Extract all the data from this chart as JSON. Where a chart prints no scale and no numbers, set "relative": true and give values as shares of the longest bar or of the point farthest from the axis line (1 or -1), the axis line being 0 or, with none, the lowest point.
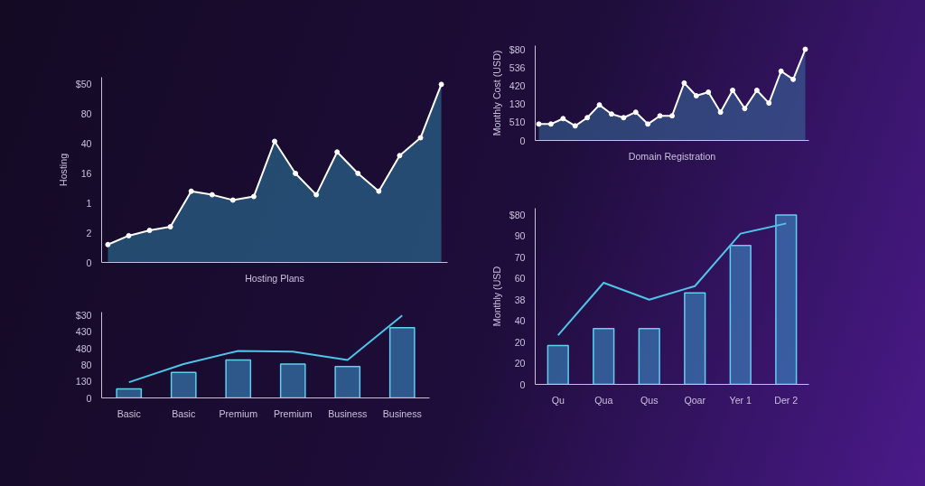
{
  "chart_data": [
    {
      "type": "area",
      "relative": true,
      "xlabel": "Hosting Plans",
      "ylabel": "Hosting",
      "categories": [
        null,
        null,
        null,
        null,
        null,
        null,
        null,
        null,
        null,
        null,
        null,
        null,
        null,
        null,
        null,
        null,
        null
      ],
      "series": [
        {
          "color": "#2f7fa6",
          "values": [
            0.1,
            0.15,
            0.18,
            0.2,
            0.4,
            0.38,
            0.35,
            0.37,
            0.68,
            0.5,
            0.38,
            0.62,
            0.5,
            0.4,
            0.6,
            0.7,
            1
          ]
        }
      ],
      "annotations": [
        "0",
        "2",
        "1",
        "16",
        "40",
        "80",
        "$50"
      ],
      "marker": "circle",
      "tick_labels": "y"
    },
    {
      "type": "area",
      "relative": true,
      "xlabel": "Domain Registration",
      "ylabel": "Monthly Cost (USD)",
      "categories": [
        null,
        null,
        null,
        null,
        null,
        null,
        null,
        null,
        null,
        null,
        null,
        null,
        null,
        null,
        null,
        null,
        null,
        null,
        null,
        null,
        null,
        null,
        null
      ],
      "series": [
        {
          "color": "#3a6fa0",
          "values": [
            0.18,
            0.18,
            0.24,
            0.16,
            0.25,
            0.39,
            0.29,
            0.25,
            0.31,
            0.18,
            0.27,
            0.27,
            0.63,
            0.49,
            0.53,
            0.31,
            0.55,
            0.35,
            0.55,
            0.41,
            0.76,
            0.67,
            1
          ]
        }
      ],
      "annotations": [
        "0",
        "510",
        "130",
        "420",
        "536",
        "$80"
      ],
      "marker": "circle",
      "tick_labels": "y"
    },
    {
      "type": "bar",
      "relative": true,
      "categories": [
        "Basic",
        "Basic",
        "Premium",
        "Premium",
        "Business",
        "Business"
      ],
      "series": [
        {
          "type": "bar",
          "color": "#3b8cc4",
          "values": [
            0.11,
            0.31,
            0.46,
            0.41,
            0.38,
            0.85
          ]
        },
        {
          "type": "line",
          "color": "#4fc3e8",
          "values": [
            0.19,
            0.41,
            0.57,
            0.56,
            0.46,
            1
          ]
        }
      ],
      "annotations": [
        "0",
        "130",
        "80",
        "480",
        "430",
        "$30"
      ]
    },
    {
      "type": "bar",
      "relative": true,
      "ylabel": "Monthly (USD",
      "categories": [
        "Qu",
        "Qua",
        "Qus",
        "Qoar",
        "Yer 1",
        "Der 2"
      ],
      "series": [
        {
          "type": "bar",
          "color": "#3b8cc4",
          "values": [
            0.23,
            0.33,
            0.33,
            0.54,
            0.82,
            1
          ]
        },
        {
          "type": "line",
          "color": "#4fc3e8",
          "values": [
            0.29,
            0.6,
            0.5,
            0.58,
            0.89,
            0.95
          ]
        }
      ],
      "annotations": [
        "0",
        "20",
        "20",
        "40",
        "38",
        "60",
        "70",
        "90",
        "$80"
      ]
    }
  ]
}
